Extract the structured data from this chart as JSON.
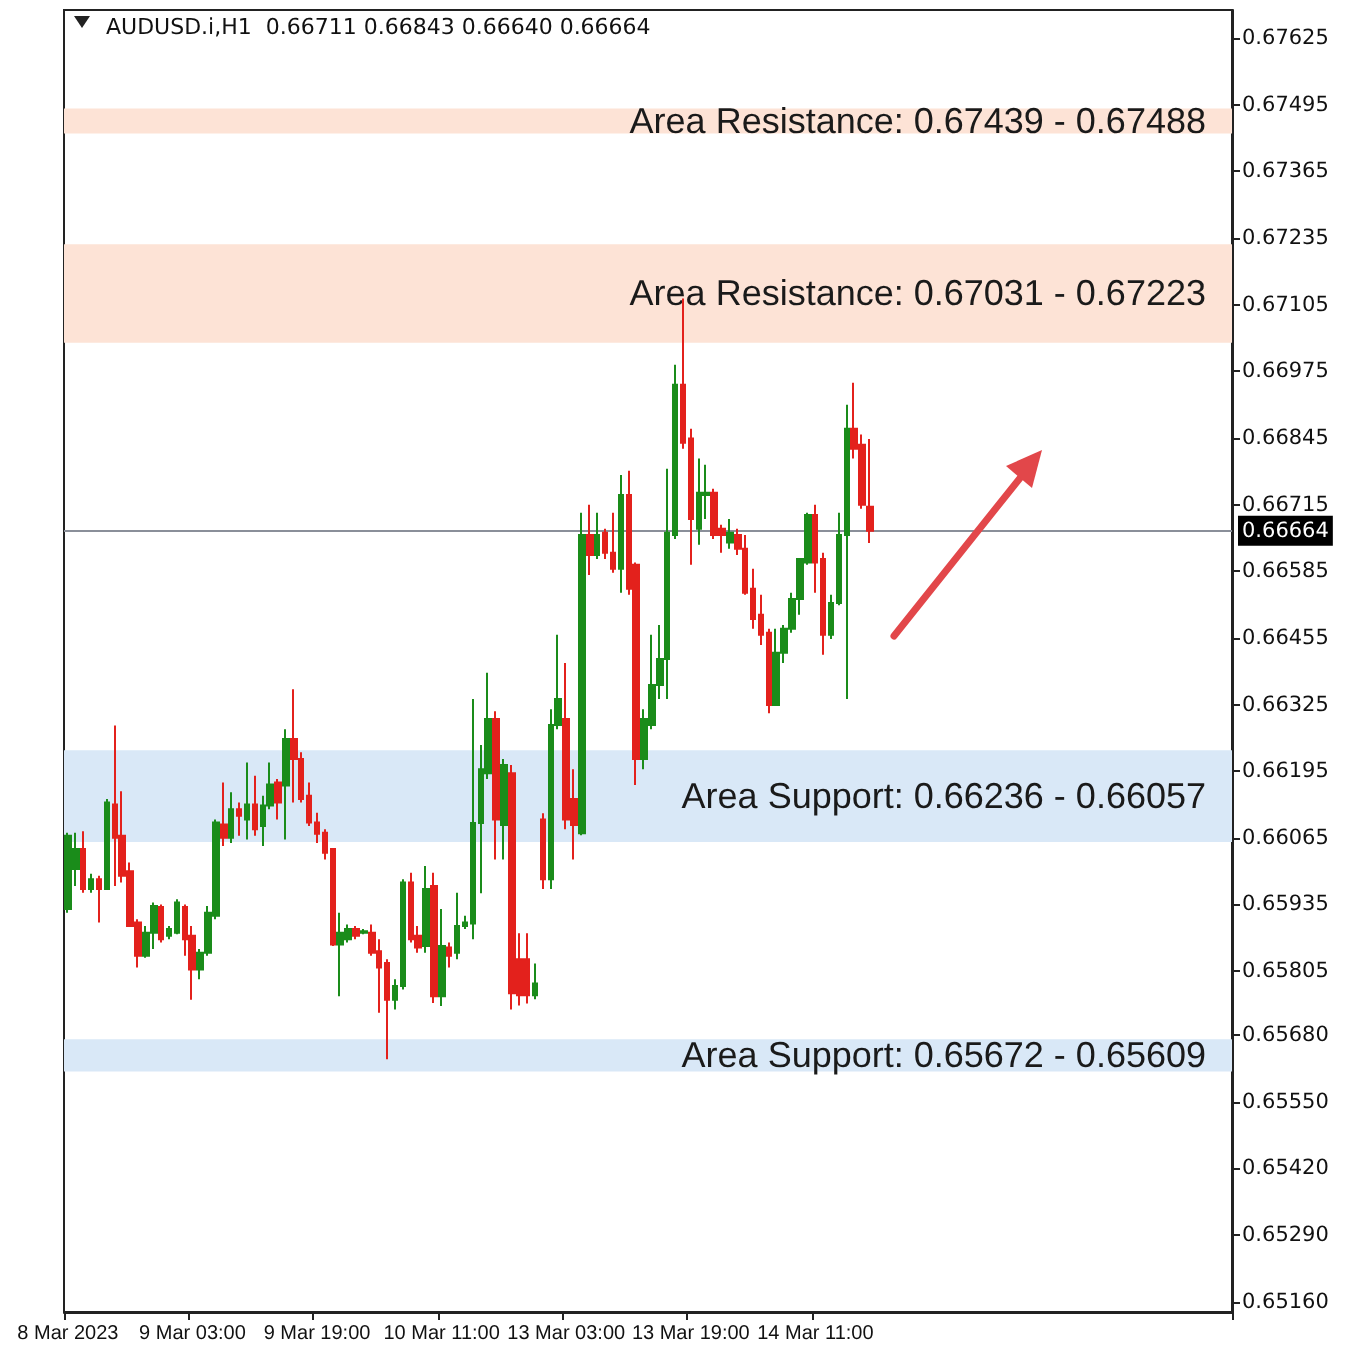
{
  "chart_data": {
    "type": "candlestick",
    "title": "AUDUSD.i,H1  0.66711 0.66843 0.66640 0.66664",
    "categories": [
      "8 Mar 2023",
      null,
      null,
      null,
      null,
      null,
      null,
      null,
      null,
      null,
      null,
      null,
      null,
      null,
      null,
      null,
      "9 Mar 03:00",
      null,
      null,
      null,
      null,
      null,
      null,
      null,
      null,
      null,
      null,
      null,
      null,
      null,
      null,
      null,
      "9 Mar 19:00",
      null,
      null,
      null,
      null,
      null,
      null,
      null,
      null,
      null,
      null,
      null,
      null,
      null,
      null,
      null,
      "10 Mar 11:00",
      null,
      null,
      null,
      null,
      null,
      null,
      null,
      null,
      null,
      null,
      null,
      null,
      null,
      null,
      null,
      "13 Mar 03:00",
      null,
      null,
      null,
      null,
      null,
      null,
      null,
      null,
      null,
      null,
      null,
      null,
      null,
      null,
      null,
      "13 Mar 19:00",
      null,
      null,
      null,
      null,
      null,
      null,
      null,
      null,
      null,
      null,
      null,
      null,
      null,
      null,
      null,
      "14 Mar 11:00",
      null,
      null,
      null,
      null,
      null,
      null,
      null,
      null,
      null,
      null,
      null,
      null,
      null,
      null,
      null,
      null,
      null,
      null,
      null,
      null,
      null,
      null,
      null,
      null,
      null,
      null,
      null,
      null,
      null,
      null,
      null,
      null,
      null,
      null,
      null,
      null,
      null,
      null,
      null,
      null,
      null,
      null,
      null,
      null,
      null,
      null,
      null,
      null,
      null,
      null,
      null,
      null,
      null
    ],
    "ohlc": [
      [
        0.65926,
        0.66075,
        0.65919,
        0.66069
      ],
      [
        0.66004,
        0.66075,
        0.65971,
        0.66043
      ],
      [
        0.66043,
        0.66078,
        0.65958,
        0.65965
      ],
      [
        0.65965,
        0.65995,
        0.65958,
        0.65984
      ],
      [
        0.65984,
        0.65991,
        0.659,
        0.65965
      ],
      [
        0.65965,
        0.66141,
        0.65965,
        0.66134
      ],
      [
        0.6613,
        0.66284,
        0.65971,
        0.66065
      ],
      [
        0.66069,
        0.66156,
        0.65978,
        0.65991
      ],
      [
        0.66,
        0.66017,
        0.65893,
        0.65893
      ],
      [
        0.659,
        0.65906,
        0.65812,
        0.65835
      ],
      [
        0.65835,
        0.65893,
        0.65831,
        0.6588
      ],
      [
        0.6588,
        0.65939,
        0.65848,
        0.65932
      ],
      [
        0.6593,
        0.65935,
        0.65861,
        0.65867
      ],
      [
        0.65874,
        0.65893,
        0.65867,
        0.65887
      ],
      [
        0.6588,
        0.65945,
        0.65877,
        0.65939
      ],
      [
        0.6593,
        0.65935,
        0.65835,
        0.65867
      ],
      [
        0.65874,
        0.65893,
        0.65749,
        0.65808
      ],
      [
        0.65808,
        0.65848,
        0.65789,
        0.65841
      ],
      [
        0.65841,
        0.65932,
        0.65835,
        0.65919
      ],
      [
        0.65913,
        0.66101,
        0.65906,
        0.66095
      ],
      [
        0.66091,
        0.66173,
        0.66049,
        0.66065
      ],
      [
        0.66065,
        0.66154,
        0.66055,
        0.66121
      ],
      [
        0.66121,
        0.66134,
        0.66069,
        0.66108
      ],
      [
        0.66101,
        0.66212,
        0.66062,
        0.6613
      ],
      [
        0.6613,
        0.66186,
        0.66069,
        0.66082
      ],
      [
        0.66088,
        0.66147,
        0.66049,
        0.66128
      ],
      [
        0.66128,
        0.66212,
        0.66121,
        0.66169
      ],
      [
        0.66173,
        0.6618,
        0.66101,
        0.66134
      ],
      [
        0.66167,
        0.66277,
        0.66062,
        0.66258
      ],
      [
        0.66258,
        0.66355,
        0.66134,
        0.66219
      ],
      [
        0.66219,
        0.66232,
        0.66134,
        0.66141
      ],
      [
        0.66147,
        0.66173,
        0.66088,
        0.66095
      ],
      [
        0.66095,
        0.66114,
        0.66055,
        0.66073
      ],
      [
        0.66075,
        0.66082,
        0.66023,
        0.66036
      ],
      [
        0.66043,
        0.66043,
        0.65854,
        0.65857
      ],
      [
        0.65857,
        0.65919,
        0.65756,
        0.6588
      ],
      [
        0.65867,
        0.65896,
        0.65861,
        0.65887
      ],
      [
        0.65887,
        0.65893,
        0.65867,
        0.65874
      ],
      [
        0.6588,
        0.65887,
        0.65877,
        0.65883
      ],
      [
        0.6588,
        0.65896,
        0.65835,
        0.65841
      ],
      [
        0.65844,
        0.65867,
        0.65724,
        0.65812
      ],
      [
        0.65821,
        0.65828,
        0.65633,
        0.65749
      ],
      [
        0.65749,
        0.65789,
        0.6573,
        0.65776
      ],
      [
        0.65776,
        0.65984,
        0.65769,
        0.65978
      ],
      [
        0.65978,
        0.65997,
        0.65861,
        0.65867
      ],
      [
        0.65874,
        0.65893,
        0.65841,
        0.65851
      ],
      [
        0.65854,
        0.6601,
        0.65841,
        0.65965
      ],
      [
        0.65971,
        0.65997,
        0.65743,
        0.65756
      ],
      [
        0.65756,
        0.65926,
        0.65737,
        0.65854
      ],
      [
        0.65851,
        0.65861,
        0.65812,
        0.65835
      ],
      [
        0.65841,
        0.65958,
        0.65828,
        0.65893
      ],
      [
        0.65893,
        0.65913,
        0.65887,
        0.659
      ],
      [
        0.65898,
        0.66336,
        0.65867,
        0.66094
      ],
      [
        0.66094,
        0.66246,
        0.65957,
        0.66199
      ],
      [
        0.66191,
        0.66387,
        0.6618,
        0.66297
      ],
      [
        0.66297,
        0.66312,
        0.66023,
        0.66101
      ],
      [
        0.6609,
        0.66219,
        0.66023,
        0.66207
      ],
      [
        0.66191,
        0.66207,
        0.6573,
        0.65762
      ],
      [
        0.65828,
        0.65879,
        0.65738,
        0.65758
      ],
      [
        0.65828,
        0.65879,
        0.65742,
        0.65758
      ],
      [
        0.65758,
        0.6582,
        0.6575,
        0.65781
      ],
      [
        0.66101,
        0.66113,
        0.65965,
        0.65984
      ],
      [
        0.65984,
        0.66316,
        0.65965,
        0.66285
      ],
      [
        0.66285,
        0.66461,
        0.66277,
        0.66336
      ],
      [
        0.66297,
        0.66406,
        0.66082,
        0.66101
      ],
      [
        0.66141,
        0.66199,
        0.66023,
        0.6609
      ],
      [
        0.66074,
        0.66699,
        0.6607,
        0.66656
      ],
      [
        0.66656,
        0.66715,
        0.66578,
        0.66617
      ],
      [
        0.66617,
        0.66699,
        0.66609,
        0.66656
      ],
      [
        0.6666,
        0.66668,
        0.66609,
        0.66621
      ],
      [
        0.66621,
        0.66699,
        0.66582,
        0.6659
      ],
      [
        0.6659,
        0.66773,
        0.66543,
        0.66734
      ],
      [
        0.66734,
        0.66781,
        0.66539,
        0.66551
      ],
      [
        0.66598,
        0.66602,
        0.66168,
        0.66219
      ],
      [
        0.66219,
        0.66316,
        0.66199,
        0.66297
      ],
      [
        0.66285,
        0.66461,
        0.66277,
        0.66363
      ],
      [
        0.66363,
        0.6648,
        0.66336,
        0.66414
      ],
      [
        0.66414,
        0.66785,
        0.66336,
        0.6666
      ],
      [
        0.66656,
        0.66988,
        0.66648,
        0.66949
      ],
      [
        0.66949,
        0.67117,
        0.66824,
        0.66836
      ],
      [
        0.66844,
        0.66863,
        0.66598,
        0.66687
      ],
      [
        0.66668,
        0.66805,
        0.66637,
        0.66738
      ],
      [
        0.66734,
        0.66793,
        0.66687,
        0.66738
      ],
      [
        0.66738,
        0.66746,
        0.66648,
        0.66656
      ],
      [
        0.66668,
        0.66676,
        0.66621,
        0.66656
      ],
      [
        0.66641,
        0.66687,
        0.66629,
        0.6666
      ],
      [
        0.66656,
        0.66668,
        0.66617,
        0.66629
      ],
      [
        0.66629,
        0.66656,
        0.66539,
        0.66543
      ],
      [
        0.66551,
        0.6659,
        0.66473,
        0.66492
      ],
      [
        0.665,
        0.66539,
        0.66441,
        0.66461
      ],
      [
        0.66465,
        0.66473,
        0.66308,
        0.66324
      ],
      [
        0.66324,
        0.66473,
        0.66324,
        0.66426
      ],
      [
        0.66426,
        0.6648,
        0.66406,
        0.66473
      ],
      [
        0.66473,
        0.66543,
        0.66465,
        0.66531
      ],
      [
        0.66531,
        0.66609,
        0.665,
        0.66609
      ],
      [
        0.66602,
        0.66699,
        0.66598,
        0.66695
      ],
      [
        0.66695,
        0.66715,
        0.66543,
        0.66602
      ],
      [
        0.66609,
        0.66621,
        0.66422,
        0.66461
      ],
      [
        0.66461,
        0.66539,
        0.66453,
        0.66523
      ],
      [
        0.66523,
        0.66699,
        0.66519,
        0.66656
      ],
      [
        0.66656,
        0.6691,
        0.66336,
        0.66863
      ],
      [
        0.66863,
        0.66953,
        0.66805,
        0.66824
      ],
      [
        0.66832,
        0.66852,
        0.66707,
        0.66715
      ],
      [
        0.66711,
        0.66843,
        0.6664,
        0.66664
      ],
      null,
      null,
      null,
      null,
      null,
      null,
      null,
      null,
      null,
      null,
      null,
      null,
      null,
      null,
      null,
      null,
      null,
      null,
      null,
      null,
      null,
      null,
      null,
      null,
      null,
      null,
      null,
      null,
      null,
      null,
      null,
      null,
      null,
      null,
      null,
      null,
      null,
      null,
      null,
      null,
      null,
      null,
      null,
      null,
      null,
      null
    ],
    "colors": [
      "#1a8c1a",
      "#1a8c1a",
      "#e3211c",
      "#1a8c1a",
      "#e3211c",
      "#1a8c1a",
      "#e3211c",
      "#e3211c",
      "#e3211c",
      "#e3211c",
      "#1a8c1a",
      "#1a8c1a",
      "#e3211c",
      "#1a8c1a",
      "#1a8c1a",
      "#e3211c",
      "#e3211c",
      "#1a8c1a",
      "#1a8c1a",
      "#1a8c1a",
      "#e3211c",
      "#1a8c1a",
      "#e3211c",
      "#1a8c1a",
      "#e3211c",
      "#1a8c1a",
      "#1a8c1a",
      "#e3211c",
      "#1a8c1a",
      "#e3211c",
      "#e3211c",
      "#e3211c",
      "#e3211c",
      "#e3211c",
      "#e3211c",
      "#1a8c1a",
      "#1a8c1a",
      "#e3211c",
      "#1a8c1a",
      "#e3211c",
      "#e3211c",
      "#e3211c",
      "#1a8c1a",
      "#1a8c1a",
      "#e3211c",
      "#e3211c",
      "#1a8c1a",
      "#e3211c",
      "#1a8c1a",
      "#e3211c",
      "#1a8c1a",
      "#1a8c1a",
      "#1a8c1a",
      "#1a8c1a",
      "#1a8c1a",
      "#e3211c",
      "#1a8c1a",
      "#e3211c",
      "#e3211c",
      "#e3211c",
      "#1a8c1a",
      "#e3211c",
      "#1a8c1a",
      "#1a8c1a",
      "#e3211c",
      "#e3211c",
      "#1a8c1a",
      "#e3211c",
      "#1a8c1a",
      "#e3211c",
      "#e3211c",
      "#1a8c1a",
      "#e3211c",
      "#e3211c",
      "#1a8c1a",
      "#1a8c1a",
      "#1a8c1a",
      "#1a8c1a",
      "#1a8c1a",
      "#e3211c",
      "#e3211c",
      "#1a8c1a",
      "#1a8c1a",
      "#e3211c",
      "#e3211c",
      "#1a8c1a",
      "#e3211c",
      "#e3211c",
      "#e3211c",
      "#e3211c",
      "#e3211c",
      "#1a8c1a",
      "#1a8c1a",
      "#1a8c1a",
      "#1a8c1a",
      "#1a8c1a",
      "#e3211c",
      "#e3211c",
      "#1a8c1a",
      "#1a8c1a",
      "#1a8c1a",
      "#e3211c",
      "#e3211c",
      "#e3211c",
      null,
      null,
      null,
      null,
      null,
      null,
      null,
      null,
      null,
      null,
      null,
      null,
      null,
      null,
      null,
      null,
      null,
      null,
      null,
      null,
      null,
      null,
      null,
      null,
      null,
      null,
      null,
      null,
      null,
      null,
      null,
      null,
      null,
      null,
      null,
      null,
      null,
      null,
      null,
      null,
      null,
      null,
      null,
      null,
      null,
      null
    ],
    "ylim": [
      0.6514,
      0.6768
    ],
    "yticks": [
      0.67625,
      0.67495,
      0.67365,
      0.67235,
      0.67105,
      0.66975,
      0.66845,
      0.66715,
      0.66585,
      0.66455,
      0.66325,
      0.66195,
      0.66065,
      0.65935,
      0.65805,
      {
        "value": 0.6568,
        "label": "0.65680"
      },
      {
        "value": 0.6555,
        "label": "0.65550"
      },
      {
        "value": 0.6542,
        "label": "0.65420"
      },
      {
        "value": 0.6529,
        "label": "0.65290"
      },
      {
        "value": 0.6516,
        "label": "0.65160"
      }
    ],
    "ref_lines": [
      {
        "axis": "y",
        "value": 0.66664,
        "label": "0.66664",
        "color": "#8a8f99"
      }
    ],
    "bands": [
      {
        "axis": "y",
        "from": 0.67439,
        "to": 0.67488,
        "label": "Area Resistance: 0.67439 - 0.67488",
        "color": "#fde3d6"
      },
      {
        "axis": "y",
        "from": 0.67031,
        "to": 0.67223,
        "label": "Area Resistance: 0.67031 - 0.67223",
        "color": "#fde3d6"
      },
      {
        "axis": "y",
        "from": 0.66057,
        "to": 0.66236,
        "label": "Area Support: 0.66236 - 0.66057",
        "color": "#d9e8f7"
      },
      {
        "axis": "y",
        "from": 0.65609,
        "to": 0.65672,
        "label": "Area Support: 0.65672 - 0.65609",
        "color": "#d9e8f7"
      }
    ],
    "grid": false
  }
}
